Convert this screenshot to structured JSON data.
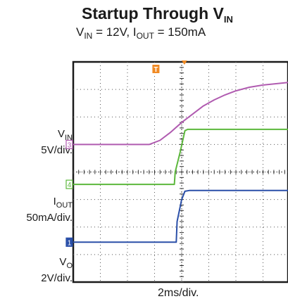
{
  "title": {
    "text": "Startup Through V",
    "sub": "IN"
  },
  "subtitle": {
    "p1": "V",
    "p1_sub": "IN",
    "p2": " = 12V, I",
    "p2_sub": "OUT",
    "p3": " = 150mA"
  },
  "channels": [
    {
      "label": "V",
      "label_sub": "IN",
      "scale": "5V/div.",
      "marker": "3",
      "color": "#b05bb0"
    },
    {
      "label": "I",
      "label_sub": "OUT",
      "scale": "50mA/div.",
      "marker": "4",
      "color": "#5cb83c"
    },
    {
      "label": "V",
      "label_sub": "O",
      "scale": "2V/div.",
      "marker": "1",
      "color": "#2a4fa8"
    }
  ],
  "trigger_marker": "T",
  "xlabel": "2ms/div.",
  "chart_data": {
    "type": "line",
    "title": "Startup Through VIN",
    "subtitle": "VIN = 12V, IOUT = 150mA",
    "xlabel": "2ms/div.",
    "x_unit": "div",
    "xlim": [
      0,
      9
    ],
    "ylim": [
      0,
      8
    ],
    "grid": true,
    "series": [
      {
        "name": "VIN",
        "scale": "5V/div.",
        "color": "#b05bb0",
        "points": [
          [
            0,
            5.0
          ],
          [
            2.8,
            5.0
          ],
          [
            3.2,
            5.15
          ],
          [
            3.6,
            5.45
          ],
          [
            4.0,
            5.8
          ],
          [
            4.4,
            6.1
          ],
          [
            4.8,
            6.4
          ],
          [
            5.2,
            6.62
          ],
          [
            5.6,
            6.8
          ],
          [
            6.0,
            6.95
          ],
          [
            6.5,
            7.08
          ],
          [
            7.0,
            7.16
          ],
          [
            8.0,
            7.26
          ],
          [
            9.0,
            7.32
          ]
        ]
      },
      {
        "name": "IOUT",
        "scale": "50mA/div.",
        "color": "#5cb83c",
        "points": [
          [
            0,
            3.55
          ],
          [
            3.73,
            3.55
          ],
          [
            3.76,
            4.0
          ],
          [
            3.95,
            4.75
          ],
          [
            4.12,
            5.5
          ],
          [
            4.22,
            5.55
          ],
          [
            9.0,
            5.55
          ]
        ]
      },
      {
        "name": "VO",
        "scale": "2V/div.",
        "color": "#2a4fa8",
        "points": [
          [
            0,
            1.45
          ],
          [
            3.8,
            1.45
          ],
          [
            3.83,
            2.2
          ],
          [
            4.0,
            3.0
          ],
          [
            4.12,
            3.3
          ],
          [
            4.3,
            3.33
          ],
          [
            9.0,
            3.33
          ]
        ]
      }
    ]
  }
}
